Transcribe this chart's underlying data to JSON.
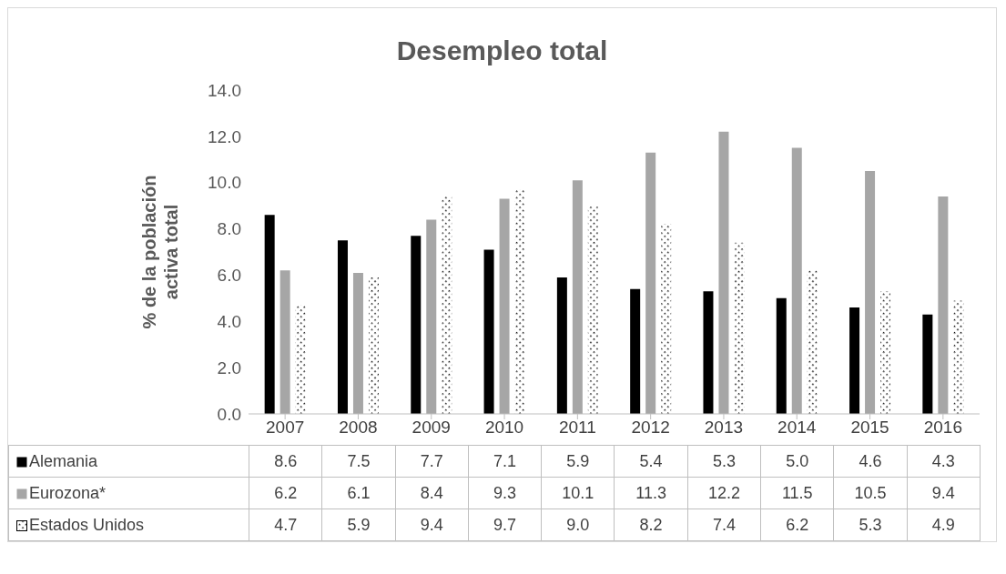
{
  "chart_data": {
    "type": "bar",
    "title": "Desempleo total",
    "ylabel": "% de la población activa total",
    "categories": [
      "2007",
      "2008",
      "2009",
      "2010",
      "2011",
      "2012",
      "2013",
      "2014",
      "2015",
      "2016"
    ],
    "series": [
      {
        "name": "Alemania",
        "color": "#000000",
        "values": [
          8.6,
          7.5,
          7.7,
          7.1,
          5.9,
          5.4,
          5.3,
          5.0,
          4.6,
          4.3
        ],
        "value_labels": [
          "8.6",
          "7.5",
          "7.7",
          "7.1",
          "5.9",
          "5.4",
          "5.3",
          "5.0",
          "4.6",
          "4.3"
        ]
      },
      {
        "name": "Eurozona*",
        "color": "#a6a6a6",
        "values": [
          6.2,
          6.1,
          8.4,
          9.3,
          10.1,
          11.3,
          12.2,
          11.5,
          10.5,
          9.4
        ],
        "value_labels": [
          "6.2",
          "6.1",
          "8.4",
          "9.3",
          "10.1",
          "11.3",
          "12.2",
          "11.5",
          "10.5",
          "9.4"
        ]
      },
      {
        "name": "Estados Unidos",
        "color": "#ffffff",
        "values": [
          4.7,
          5.9,
          9.4,
          9.7,
          9.0,
          8.2,
          7.4,
          6.2,
          5.3,
          4.9
        ],
        "value_labels": [
          "4.7",
          "5.9",
          "9.4",
          "9.7",
          "9.0",
          "8.2",
          "7.4",
          "6.2",
          "5.3",
          "4.9"
        ]
      }
    ],
    "ylim": [
      0,
      14
    ],
    "yticks": [
      {
        "value": 0,
        "label": "0.0"
      },
      {
        "value": 2,
        "label": "2.0"
      },
      {
        "value": 4,
        "label": "4.0"
      },
      {
        "value": 6,
        "label": "6.0"
      },
      {
        "value": 8,
        "label": "8.0"
      },
      {
        "value": 10,
        "label": "10.0"
      },
      {
        "value": 12,
        "label": "12.0"
      },
      {
        "value": 14,
        "label": "14.0"
      }
    ],
    "legend": "bottom"
  }
}
